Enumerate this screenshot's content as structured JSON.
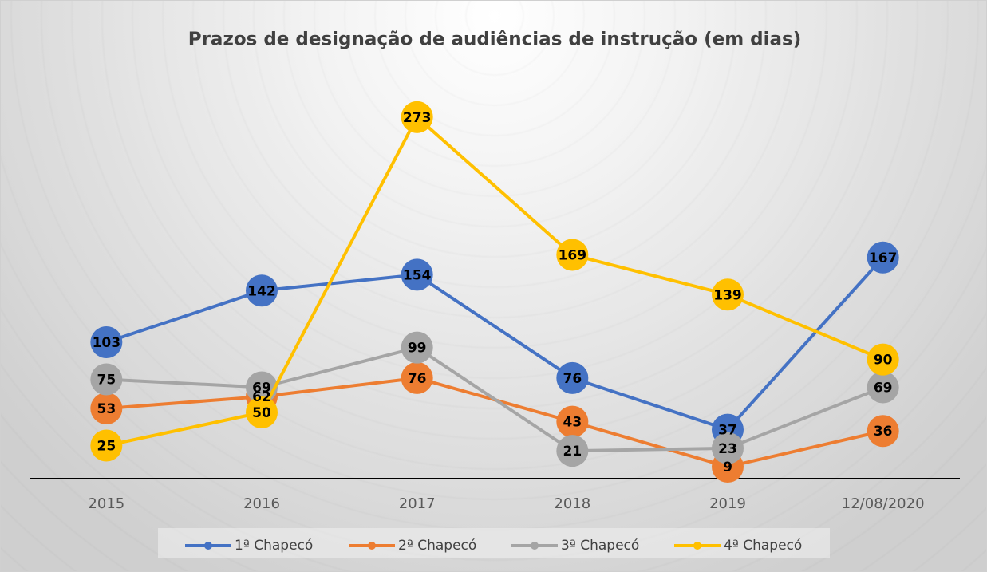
{
  "chart_data": {
    "type": "line",
    "title": "Prazos de designação de audiências de instrução (em dias)",
    "categories": [
      "2015",
      "2016",
      "2017",
      "2018",
      "2019",
      "12/08/2020"
    ],
    "series": [
      {
        "name": "1ª Chapecó",
        "color": "#4472c4",
        "values": [
          103,
          142,
          154,
          76,
          37,
          167
        ]
      },
      {
        "name": "2ª Chapecó",
        "color": "#ed7d31",
        "values": [
          53,
          62,
          76,
          43,
          9,
          36
        ]
      },
      {
        "name": "3ª Chapecó",
        "color": "#a5a5a5",
        "values": [
          75,
          69,
          99,
          21,
          23,
          69
        ]
      },
      {
        "name": "4ª Chapecó",
        "color": "#ffc000",
        "values": [
          25,
          50,
          273,
          169,
          139,
          90
        ]
      }
    ],
    "ylim": [
      0,
      300
    ],
    "legend": "bottom"
  }
}
